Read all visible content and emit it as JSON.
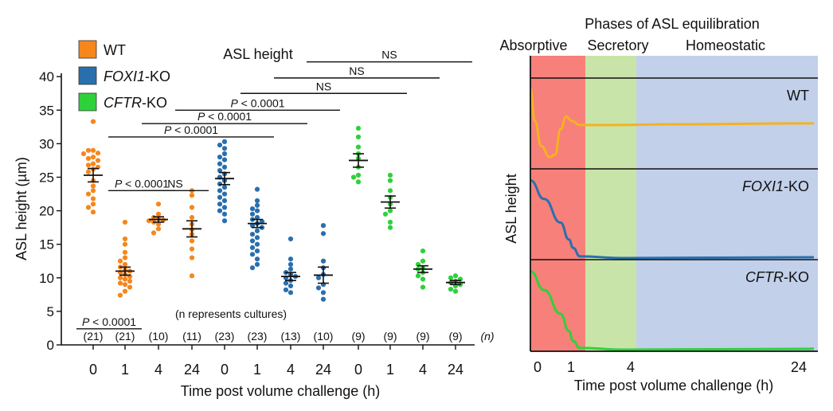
{
  "chart_data": [
    {
      "type": "scatter",
      "title": "ASL height",
      "ylabel": "ASL height (µm)",
      "xlabel": "Time post volume challenge (h)",
      "ylim": [
        0,
        40
      ],
      "yticks": [
        0,
        5,
        10,
        15,
        20,
        25,
        30,
        35,
        40
      ],
      "n_axis_label": "(n)",
      "n_note": "(n represents cultures)",
      "legend": [
        {
          "key": "wt",
          "label": "WT",
          "italic": false,
          "color": "#f7861c"
        },
        {
          "key": "foxi1",
          "label": "FOXI1-KO",
          "italic_part": "FOXI1",
          "plain_part": "-KO",
          "color": "#2a6fad"
        },
        {
          "key": "cftr",
          "label": "CFTR-KO",
          "italic_part": "CFTR",
          "plain_part": "-KO",
          "color": "#2ed13a"
        }
      ],
      "groups": [
        {
          "series": "wt",
          "time": "0",
          "n": "(21)",
          "mean": 25.3,
          "sem": 1.0,
          "values": [
            33.3,
            29.0,
            29.0,
            28.6,
            28.5,
            28.0,
            27.8,
            27.5,
            27.0,
            26.8,
            26.5,
            26.2,
            25.8,
            24.5,
            23.7,
            23.0,
            22.5,
            21.8,
            21.0,
            20.5,
            19.8
          ]
        },
        {
          "series": "wt",
          "time": "1",
          "n": "(21)",
          "mean": 11.0,
          "sem": 0.6,
          "values": [
            18.3,
            15.8,
            15.0,
            13.8,
            13.0,
            12.5,
            12.0,
            11.6,
            11.2,
            11.0,
            10.8,
            10.5,
            10.2,
            10.0,
            9.8,
            9.5,
            9.2,
            9.0,
            8.6,
            8.0,
            7.4
          ]
        },
        {
          "series": "wt",
          "time": "4",
          "n": "(10)",
          "mean": 18.7,
          "sem": 0.4,
          "values": [
            21.0,
            19.5,
            19.0,
            18.8,
            18.6,
            18.5,
            18.3,
            18.0,
            17.3,
            16.7
          ]
        },
        {
          "series": "wt",
          "time": "24",
          "n": "(11)",
          "mean": 17.3,
          "sem": 1.2,
          "values": [
            23.0,
            22.3,
            20.5,
            19.0,
            18.0,
            17.2,
            16.5,
            15.5,
            14.3,
            13.0,
            10.3
          ]
        },
        {
          "series": "foxi1",
          "time": "0",
          "n": "(23)",
          "mean": 24.8,
          "sem": 0.9,
          "values": [
            30.3,
            29.8,
            29.3,
            28.5,
            28.0,
            27.6,
            27.0,
            26.5,
            26.0,
            25.5,
            25.0,
            24.5,
            24.0,
            23.5,
            23.0,
            22.5,
            22.0,
            21.5,
            21.0,
            20.5,
            20.0,
            19.5,
            18.5
          ]
        },
        {
          "series": "foxi1",
          "time": "1",
          "n": "(23)",
          "mean": 18.1,
          "sem": 0.6,
          "values": [
            23.2,
            21.5,
            20.8,
            20.3,
            20.0,
            19.5,
            19.0,
            18.7,
            18.4,
            18.1,
            17.8,
            17.5,
            17.0,
            16.5,
            16.0,
            15.5,
            15.0,
            14.5,
            14.0,
            13.5,
            12.8,
            12.0,
            11.5
          ]
        },
        {
          "series": "foxi1",
          "time": "4",
          "n": "(13)",
          "mean": 10.2,
          "sem": 0.6,
          "values": [
            15.8,
            12.8,
            12.0,
            11.3,
            10.8,
            10.5,
            10.2,
            10.0,
            9.6,
            9.2,
            8.8,
            8.2,
            7.8
          ]
        },
        {
          "series": "foxi1",
          "time": "24",
          "n": "(10)",
          "mean": 10.4,
          "sem": 1.2,
          "values": [
            17.8,
            16.6,
            12.5,
            11.5,
            10.5,
            10.0,
            9.0,
            8.5,
            7.8,
            6.8
          ]
        },
        {
          "series": "cftr",
          "time": "0",
          "n": "(9)",
          "mean": 27.5,
          "sem": 1.0,
          "values": [
            32.3,
            31.0,
            29.5,
            28.5,
            27.8,
            26.5,
            25.3,
            25.0,
            24.3
          ]
        },
        {
          "series": "cftr",
          "time": "1",
          "n": "(9)",
          "mean": 21.3,
          "sem": 0.9,
          "values": [
            25.3,
            24.5,
            23.0,
            22.0,
            21.0,
            20.0,
            19.5,
            18.3,
            17.5
          ]
        },
        {
          "series": "cftr",
          "time": "4",
          "n": "(9)",
          "mean": 11.3,
          "sem": 0.5,
          "values": [
            14.0,
            12.5,
            12.0,
            11.5,
            11.3,
            10.8,
            10.3,
            9.8,
            8.6
          ]
        },
        {
          "series": "cftr",
          "time": "24",
          "n": "(9)",
          "mean": 9.3,
          "sem": 0.3,
          "values": [
            10.3,
            10.0,
            9.8,
            9.5,
            9.3,
            9.0,
            8.8,
            8.3,
            8.0
          ]
        }
      ],
      "comparisons": [
        {
          "label": "P < 0.0001",
          "from": 0,
          "to": 1,
          "y": 2.4,
          "label_above": true
        },
        {
          "label": "P < 0.0001",
          "from": 1,
          "to": 2,
          "y": 23.0,
          "label_above": true
        },
        {
          "label": "NS",
          "from": 2,
          "to": 3,
          "y": 23.0,
          "label_above": true
        },
        {
          "label": "P < 0.0001",
          "from": 1,
          "to": 5,
          "y": 31.0,
          "label_above": true
        },
        {
          "label": "P < 0.0001",
          "from": 2,
          "to": 6,
          "y": 33.0,
          "label_above": true
        },
        {
          "label": "P < 0.0001",
          "from": 3,
          "to": 7,
          "y": 35.0,
          "label_above": true
        },
        {
          "label": "NS",
          "from": 5,
          "to": 9,
          "y": 37.5,
          "label_above": true
        },
        {
          "label": "NS",
          "from": 6,
          "to": 10,
          "y": 39.8,
          "label_above": true
        },
        {
          "label": "NS",
          "from": 7,
          "to": 11,
          "y": 42.2,
          "label_above": true
        }
      ]
    },
    {
      "type": "line",
      "title": "Phases of ASL equilibration",
      "ylabel": "ASL height",
      "xlabel": "Time post volume challenge (h)",
      "xticks": [
        "0",
        "1",
        "4",
        "24"
      ],
      "phases": [
        {
          "label": "Absorptive",
          "color": "#f7807a"
        },
        {
          "label": "Secretory",
          "color": "#c8e4a8"
        },
        {
          "label": "Homeostatic",
          "color": "#c2d0ea"
        }
      ],
      "panels": [
        {
          "label": "WT",
          "italic_part": "",
          "plain_part": "WT",
          "color": "#f5b21e",
          "curve": [
            [
              0,
              0.93
            ],
            [
              0.08,
              0.55
            ],
            [
              0.2,
              0.25
            ],
            [
              0.35,
              0.12
            ],
            [
              0.45,
              0.15
            ],
            [
              0.55,
              0.45
            ],
            [
              0.65,
              0.6
            ],
            [
              0.75,
              0.55
            ],
            [
              0.9,
              0.5
            ],
            [
              1.1,
              0.5
            ],
            [
              1.5,
              0.51
            ],
            [
              2.2,
              0.52
            ]
          ]
        },
        {
          "label": "FOXI1-KO",
          "italic_part": "FOXI1",
          "plain_part": "-KO",
          "color": "#2a6fad",
          "curve": [
            [
              0,
              0.92
            ],
            [
              0.25,
              0.7
            ],
            [
              0.55,
              0.42
            ],
            [
              0.7,
              0.22
            ],
            [
              0.78,
              0.12
            ],
            [
              0.9,
              0.02
            ],
            [
              1.2,
              0.0
            ],
            [
              2.2,
              0.01
            ]
          ]
        },
        {
          "label": "CFTR-KO",
          "italic_part": "CFTR",
          "plain_part": "-KO",
          "color": "#2ed13a",
          "curve": [
            [
              0,
              0.92
            ],
            [
              0.25,
              0.7
            ],
            [
              0.55,
              0.42
            ],
            [
              0.7,
              0.22
            ],
            [
              0.78,
              0.1
            ],
            [
              0.9,
              0.02
            ],
            [
              1.2,
              0.0
            ],
            [
              2.2,
              0.01
            ]
          ]
        }
      ]
    }
  ]
}
